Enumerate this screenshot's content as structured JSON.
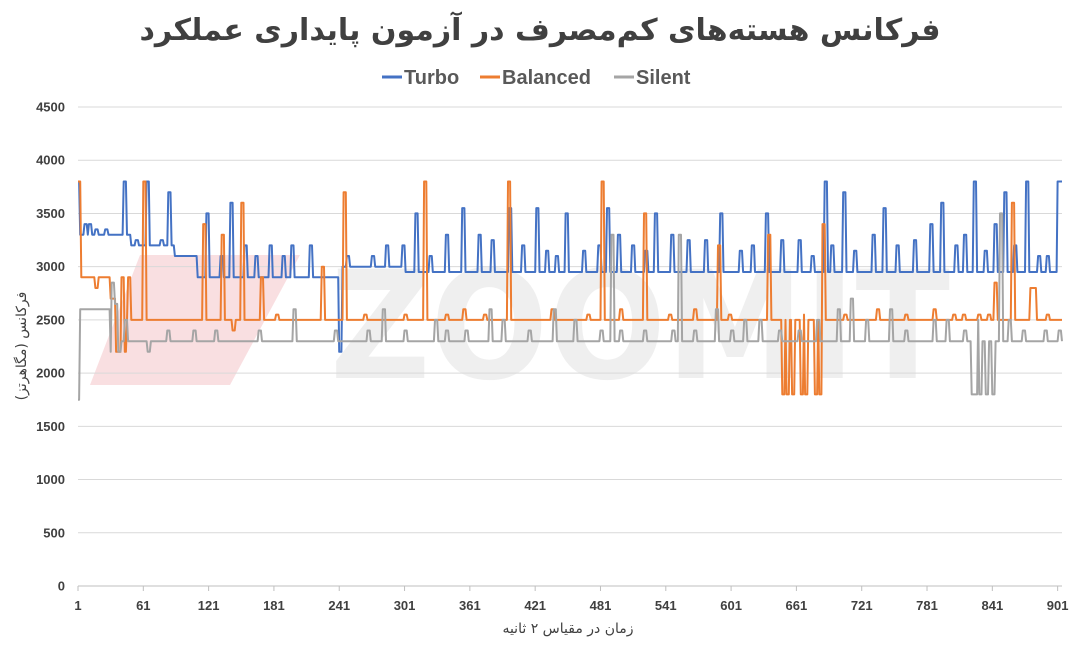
{
  "chart_data": {
    "type": "line",
    "title": "فرکانس هسته‌های کم‌مصرف در آزمون پایداری عملکرد",
    "xlabel": "زمان در مقیاس ۲ ثانیه",
    "ylabel": "فرکانس (مگاهرتز)",
    "ylim": [
      0,
      4500
    ],
    "xlim": [
      1,
      905
    ],
    "x_ticks": [
      "1",
      "61",
      "121",
      "181",
      "241",
      "301",
      "361",
      "421",
      "481",
      "541",
      "601",
      "661",
      "721",
      "781",
      "841",
      "901"
    ],
    "y_ticks": [
      "0",
      "500",
      "1000",
      "1500",
      "2000",
      "2500",
      "3000",
      "3500",
      "4000",
      "4500"
    ],
    "grid": true,
    "legend_position": "top",
    "watermark": "ZOOMIT",
    "series": [
      {
        "name": "Turbo",
        "color": "#4472c4",
        "baseline_segments": [
          [
            1,
            3800
          ],
          [
            2,
            3800
          ],
          [
            3,
            3300
          ],
          [
            40,
            3300
          ],
          [
            50,
            3200
          ],
          [
            90,
            3100
          ],
          [
            110,
            3100
          ],
          [
            111,
            2900
          ],
          [
            240,
            2900
          ],
          [
            241,
            2200
          ],
          [
            243,
            2200
          ],
          [
            244,
            3000
          ],
          [
            300,
            3000
          ],
          [
            301,
            2950
          ],
          [
            900,
            2950
          ],
          [
            901,
            3800
          ],
          [
            905,
            3800
          ]
        ],
        "peaks": [
          [
            8,
            3400
          ],
          [
            12,
            3400
          ],
          [
            18,
            3350
          ],
          [
            27,
            3350
          ],
          [
            44,
            3800
          ],
          [
            55,
            3250
          ],
          [
            65,
            3800
          ],
          [
            78,
            3250
          ],
          [
            85,
            3700
          ],
          [
            120,
            3500
          ],
          [
            133,
            3100
          ],
          [
            142,
            3600
          ],
          [
            155,
            3200
          ],
          [
            165,
            3100
          ],
          [
            178,
            3200
          ],
          [
            190,
            3100
          ],
          [
            198,
            3200
          ],
          [
            215,
            3200
          ],
          [
            249,
            3100
          ],
          [
            262,
            3000
          ],
          [
            272,
            3100
          ],
          [
            285,
            3200
          ],
          [
            300,
            3200
          ],
          [
            312,
            3500
          ],
          [
            325,
            3100
          ],
          [
            340,
            3300
          ],
          [
            355,
            3550
          ],
          [
            370,
            3300
          ],
          [
            382,
            3250
          ],
          [
            398,
            3550
          ],
          [
            410,
            3200
          ],
          [
            423,
            3550
          ],
          [
            432,
            3150
          ],
          [
            441,
            3100
          ],
          [
            450,
            3500
          ],
          [
            466,
            3150
          ],
          [
            480,
            3200
          ],
          [
            488,
            3550
          ],
          [
            498,
            3300
          ],
          [
            511,
            3200
          ],
          [
            523,
            3150
          ],
          [
            532,
            3500
          ],
          [
            547,
            3300
          ],
          [
            562,
            3250
          ],
          [
            578,
            3250
          ],
          [
            592,
            3500
          ],
          [
            610,
            3150
          ],
          [
            621,
            3200
          ],
          [
            634,
            3500
          ],
          [
            648,
            3250
          ],
          [
            664,
            3250
          ],
          [
            676,
            3100
          ],
          [
            688,
            3800
          ],
          [
            694,
            3200
          ],
          [
            705,
            3700
          ],
          [
            715,
            3150
          ],
          [
            732,
            3300
          ],
          [
            742,
            3550
          ],
          [
            754,
            3200
          ],
          [
            770,
            3250
          ],
          [
            785,
            3400
          ],
          [
            795,
            3600
          ],
          [
            808,
            3200
          ],
          [
            816,
            3300
          ],
          [
            825,
            3800
          ],
          [
            835,
            3150
          ],
          [
            844,
            3400
          ],
          [
            853,
            3700
          ],
          [
            862,
            3200
          ],
          [
            873,
            3800
          ],
          [
            884,
            3100
          ],
          [
            892,
            3100
          ]
        ]
      },
      {
        "name": "Balanced",
        "color": "#ed7d31",
        "baseline_segments": [
          [
            1,
            3800
          ],
          [
            3,
            3800
          ],
          [
            4,
            2900
          ],
          [
            30,
            2900
          ],
          [
            31,
            2700
          ],
          [
            35,
            2700
          ],
          [
            36,
            2200
          ],
          [
            45,
            2200
          ],
          [
            46,
            2500
          ],
          [
            905,
            2500
          ]
        ],
        "peaks": [
          [
            18,
            2800
          ],
          [
            42,
            2900
          ],
          [
            48,
            2900
          ],
          [
            62,
            3800
          ],
          [
            117,
            3400
          ],
          [
            122,
            2500
          ],
          [
            134,
            3300
          ],
          [
            144,
            2400
          ],
          [
            152,
            3600
          ],
          [
            170,
            2900
          ],
          [
            184,
            2550
          ],
          [
            226,
            3000
          ],
          [
            246,
            3700
          ],
          [
            265,
            2550
          ],
          [
            302,
            2550
          ],
          [
            320,
            3800
          ],
          [
            340,
            2550
          ],
          [
            356,
            2600
          ],
          [
            375,
            2550
          ],
          [
            397,
            3800
          ],
          [
            437,
            2600
          ],
          [
            470,
            2550
          ],
          [
            483,
            3800
          ],
          [
            500,
            2600
          ],
          [
            522,
            3500
          ],
          [
            545,
            2550
          ],
          [
            568,
            2600
          ],
          [
            590,
            3200
          ],
          [
            600,
            2550
          ],
          [
            636,
            3300
          ],
          [
            668,
            2550
          ],
          [
            686,
            3400
          ],
          [
            706,
            2550
          ],
          [
            736,
            2600
          ],
          [
            762,
            2550
          ],
          [
            788,
            2600
          ],
          [
            806,
            2550
          ],
          [
            815,
            2550
          ],
          [
            829,
            2550
          ],
          [
            838,
            2550
          ],
          [
            844,
            2850
          ],
          [
            860,
            3600
          ],
          [
            877,
            2800
          ],
          [
            880,
            2800
          ],
          [
            892,
            2550
          ]
        ],
        "dips": [
          [
            649,
            1800
          ],
          [
            653,
            1800
          ],
          [
            658,
            1800
          ],
          [
            662,
            2500
          ],
          [
            666,
            1800
          ],
          [
            670,
            1800
          ],
          [
            679,
            1800
          ],
          [
            683,
            1800
          ]
        ]
      },
      {
        "name": "Silent",
        "color": "#a5a5a5",
        "baseline_segments": [
          [
            1,
            1750
          ],
          [
            2,
            1750
          ],
          [
            3,
            2600
          ],
          [
            30,
            2600
          ],
          [
            31,
            2200
          ],
          [
            40,
            2200
          ],
          [
            41,
            2300
          ],
          [
            905,
            2300
          ]
        ],
        "peaks": [
          [
            33,
            2850
          ],
          [
            36,
            2650
          ],
          [
            45,
            2500
          ],
          [
            62,
            2300
          ],
          [
            66,
            2200
          ],
          [
            84,
            2400
          ],
          [
            108,
            2400
          ],
          [
            128,
            2400
          ],
          [
            168,
            2400
          ],
          [
            200,
            2600
          ],
          [
            238,
            2400
          ],
          [
            268,
            2400
          ],
          [
            282,
            2600
          ],
          [
            302,
            2400
          ],
          [
            330,
            2500
          ],
          [
            340,
            2400
          ],
          [
            358,
            2400
          ],
          [
            380,
            2600
          ],
          [
            392,
            2500
          ],
          [
            416,
            2400
          ],
          [
            439,
            2600
          ],
          [
            458,
            2500
          ],
          [
            482,
            2400
          ],
          [
            492,
            3300
          ],
          [
            500,
            2400
          ],
          [
            522,
            2400
          ],
          [
            548,
            2400
          ],
          [
            554,
            3300
          ],
          [
            568,
            2400
          ],
          [
            588,
            2600
          ],
          [
            602,
            2400
          ],
          [
            614,
            2500
          ],
          [
            628,
            2500
          ],
          [
            646,
            2400
          ],
          [
            658,
            2300
          ],
          [
            681,
            2500
          ],
          [
            700,
            2600
          ],
          [
            712,
            2700
          ],
          [
            726,
            2500
          ],
          [
            748,
            2600
          ],
          [
            762,
            2400
          ],
          [
            775,
            2300
          ],
          [
            788,
            2500
          ],
          [
            800,
            2500
          ],
          [
            816,
            2400
          ],
          [
            829,
            2500
          ],
          [
            849,
            3500
          ],
          [
            857,
            2500
          ],
          [
            870,
            2400
          ],
          [
            890,
            2400
          ],
          [
            903,
            2400
          ]
        ],
        "dips": [
          [
            662,
            2300
          ],
          [
            664,
            2400
          ],
          [
            823,
            1800
          ],
          [
            826,
            1800
          ],
          [
            830,
            1800
          ],
          [
            836,
            1800
          ],
          [
            842,
            1800
          ],
          [
            846,
            2300
          ]
        ]
      }
    ]
  }
}
